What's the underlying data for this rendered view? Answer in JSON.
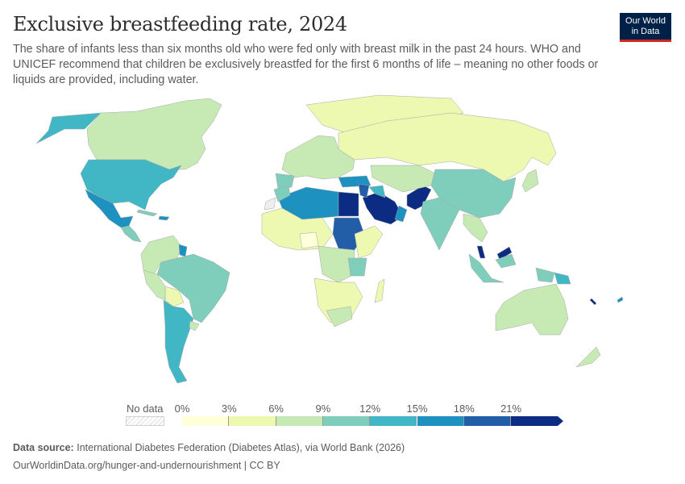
{
  "header": {
    "title": "Exclusive breastfeeding rate, 2024",
    "subtitle": "The share of infants less than six months old who were fed only with breast milk in the past 24 hours. WHO and UNICEF recommend that children be exclusively breastfed for the first 6 months of life – meaning no other foods or liquids are provided, including water.",
    "logo_line1": "Our World",
    "logo_line2": "in Data"
  },
  "legend": {
    "no_data_label": "No data",
    "ticks": [
      "0%",
      "3%",
      "6%",
      "9%",
      "12%",
      "15%",
      "18%",
      "21%"
    ],
    "bins": [
      {
        "from": 0,
        "to": 3,
        "color": "#ffffd9"
      },
      {
        "from": 3,
        "to": 6,
        "color": "#edf8b1"
      },
      {
        "from": 6,
        "to": 9,
        "color": "#c7e9b4"
      },
      {
        "from": 9,
        "to": 12,
        "color": "#7fcdbb"
      },
      {
        "from": 12,
        "to": 15,
        "color": "#41b6c4"
      },
      {
        "from": 15,
        "to": 18,
        "color": "#1d91c0"
      },
      {
        "from": 18,
        "to": 21,
        "color": "#225ea8"
      },
      {
        "from": 21,
        "to": null,
        "color": "#0c2c84"
      }
    ],
    "no_data_color": "#eeeeee"
  },
  "footer": {
    "source_label": "Data source:",
    "source_text": "International Diabetes Federation (Diabetes Atlas), via World Bank (2026)",
    "url_text": "OurWorldinData.org/hunger-and-undernourishment | CC BY"
  },
  "chart_data": {
    "type": "choropleth",
    "title": "Exclusive breastfeeding rate, 2024",
    "unit": "%",
    "scale_bins": [
      0,
      3,
      6,
      9,
      12,
      15,
      18,
      21
    ],
    "regions": [
      {
        "name": "Greenland",
        "bin": "3-6%"
      },
      {
        "name": "Canada",
        "bin": "6-9%"
      },
      {
        "name": "Alaska (USA)",
        "bin": "12-15%"
      },
      {
        "name": "United States",
        "bin": "12-15%"
      },
      {
        "name": "Mexico",
        "bin": "15-18%"
      },
      {
        "name": "Central America",
        "bin": "9-15%"
      },
      {
        "name": "Northern South America",
        "bin": "6-9%"
      },
      {
        "name": "Guyana",
        "bin": "15-18%"
      },
      {
        "name": "Brazil",
        "bin": "9-12%"
      },
      {
        "name": "Bolivia",
        "bin": "3-6%"
      },
      {
        "name": "Argentina / Chile",
        "bin": "12-15%"
      },
      {
        "name": "Russia",
        "bin": "3-6%"
      },
      {
        "name": "Europe",
        "bin": "6-9%"
      },
      {
        "name": "Spain",
        "bin": "9-12%"
      },
      {
        "name": "Turkey",
        "bin": "15-18%"
      },
      {
        "name": "Algeria / Libya",
        "bin": "15-18%"
      },
      {
        "name": "Egypt",
        "bin": "21%+"
      },
      {
        "name": "Saudi Arabia",
        "bin": "21%+"
      },
      {
        "name": "Sudan",
        "bin": "18-21%"
      },
      {
        "name": "Pakistan",
        "bin": "21%+"
      },
      {
        "name": "Central Asia",
        "bin": "6-9%"
      },
      {
        "name": "China",
        "bin": "9-12%"
      },
      {
        "name": "India",
        "bin": "9-12%"
      },
      {
        "name": "Japan",
        "bin": "6-9%"
      },
      {
        "name": "West Africa",
        "bin": "3-6%"
      },
      {
        "name": "Central Africa",
        "bin": "6-9%"
      },
      {
        "name": "Southern Africa",
        "bin": "3-9%"
      },
      {
        "name": "Malaysia",
        "bin": "21%+"
      },
      {
        "name": "Indonesia",
        "bin": "9-12%"
      },
      {
        "name": "Papua New Guinea",
        "bin": "12-15%"
      },
      {
        "name": "Australia",
        "bin": "6-9%"
      },
      {
        "name": "New Zealand",
        "bin": "6-9%"
      },
      {
        "name": "Western Sahara",
        "bin": "No data"
      }
    ]
  }
}
